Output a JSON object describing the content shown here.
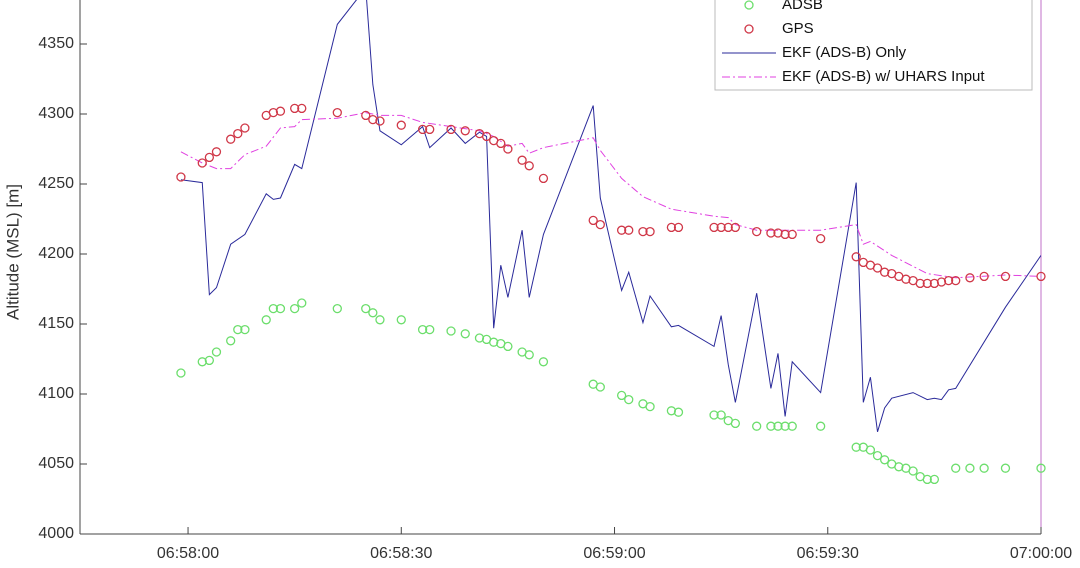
{
  "chart_data": {
    "type": "scatter",
    "y_label": "Altitude (MSL) [m]",
    "xlim": [
      25064.8,
      25200
    ],
    "xticks": [
      {
        "value": 25080,
        "label": "06:58:00"
      },
      {
        "value": 25110,
        "label": "06:58:30"
      },
      {
        "value": 25140,
        "label": "06:59:00"
      },
      {
        "value": 25170,
        "label": "06:59:30"
      },
      {
        "value": 25200,
        "label": "07:00:00"
      }
    ],
    "ylim": [
      4000,
      4380
    ],
    "yticks": [
      4000,
      4050,
      4100,
      4150,
      4200,
      4250,
      4300,
      4350
    ],
    "grid": false,
    "legend": "top-right",
    "series": [
      {
        "name": "ADSB",
        "color": "#6cde6c",
        "mode": "markers",
        "x": [
          25079,
          25082,
          25083,
          25084,
          25086,
          25087,
          25088,
          25091,
          25092,
          25093,
          25095,
          25096,
          25101,
          25105,
          25106,
          25107,
          25110,
          25113,
          25114,
          25117,
          25119,
          25121,
          25122,
          25123,
          25124,
          25125,
          25127,
          25128,
          25130,
          25137,
          25138,
          25141,
          25142,
          25144,
          25145,
          25148,
          25149,
          25154,
          25155,
          25156,
          25157,
          25160,
          25162,
          25163,
          25164,
          25165,
          25169,
          25174,
          25175,
          25176,
          25177,
          25178,
          25179,
          25180,
          25181,
          25182,
          25183,
          25184,
          25185,
          25188,
          25190,
          25192,
          25195,
          25200
        ],
        "values": [
          4115,
          4123,
          4124,
          4130,
          4138,
          4146,
          4146,
          4153,
          4161,
          4161,
          4161,
          4165,
          4161,
          4161,
          4158,
          4153,
          4153,
          4146,
          4146,
          4145,
          4143,
          4140,
          4139,
          4137,
          4136,
          4134,
          4130,
          4128,
          4123,
          4107,
          4105,
          4099,
          4096,
          4093,
          4091,
          4088,
          4087,
          4085,
          4085,
          4081,
          4079,
          4077,
          4077,
          4077,
          4077,
          4077,
          4077,
          4062,
          4062,
          4060,
          4056,
          4053,
          4050,
          4048,
          4047,
          4045,
          4041,
          4039,
          4039,
          4047,
          4047,
          4047,
          4047,
          4047
        ]
      },
      {
        "name": "GPS",
        "color": "#d03848",
        "mode": "markers",
        "x": [
          25079,
          25082,
          25083,
          25084,
          25086,
          25087,
          25088,
          25091,
          25092,
          25093,
          25095,
          25096,
          25101,
          25105,
          25106,
          25107,
          25110,
          25113,
          25114,
          25117,
          25119,
          25121,
          25122,
          25123,
          25124,
          25125,
          25127,
          25128,
          25130,
          25137,
          25138,
          25141,
          25142,
          25144,
          25145,
          25148,
          25149,
          25154,
          25155,
          25156,
          25157,
          25160,
          25162,
          25163,
          25164,
          25165,
          25169,
          25174,
          25175,
          25176,
          25177,
          25178,
          25179,
          25180,
          25181,
          25182,
          25183,
          25184,
          25185,
          25186,
          25187,
          25188,
          25190,
          25192,
          25195,
          25200
        ],
        "values": [
          4255,
          4265,
          4269,
          4273,
          4282,
          4286,
          4290,
          4299,
          4301,
          4302,
          4304,
          4304,
          4301,
          4299,
          4296,
          4295,
          4292,
          4289,
          4289,
          4289,
          4288,
          4286,
          4284,
          4281,
          4279,
          4275,
          4267,
          4263,
          4254,
          4224,
          4221,
          4217,
          4217,
          4216,
          4216,
          4219,
          4219,
          4219,
          4219,
          4219,
          4219,
          4216,
          4215,
          4215,
          4214,
          4214,
          4211,
          4198,
          4194,
          4192,
          4190,
          4187,
          4186,
          4184,
          4182,
          4181,
          4179,
          4179,
          4179,
          4180,
          4181,
          4181,
          4183,
          4184,
          4184,
          4184
        ]
      },
      {
        "name": "EKF (ADS-B) Only",
        "color": "#2a2a9a",
        "mode": "lines",
        "dash": "solid",
        "x": [
          25079,
          25082,
          25083,
          25084,
          25086,
          25088,
          25091,
          25092,
          25093,
          25095,
          25096,
          25101,
          25105,
          25106,
          25107,
          25110,
          25113,
          25114,
          25117,
          25119,
          25121,
          25122,
          25123,
          25124,
          25125,
          25127,
          25128,
          25130,
          25137,
          25138,
          25141,
          25142,
          25144,
          25145,
          25148,
          25149,
          25154,
          25155,
          25156,
          25157,
          25160,
          25162,
          25163,
          25164,
          25165,
          25169,
          25174,
          25175,
          25176,
          25177,
          25178,
          25179,
          25182,
          25184,
          25185,
          25186,
          25187,
          25188,
          25195,
          25200
        ],
        "values": [
          4253,
          4251,
          4171,
          4176,
          4207,
          4214,
          4243,
          4239,
          4240,
          4264,
          4261,
          4364,
          4390,
          4321,
          4288,
          4278,
          4291,
          4276,
          4290,
          4279,
          4287,
          4284,
          4147,
          4192,
          4169,
          4217,
          4169,
          4214,
          4306,
          4240,
          4174,
          4187,
          4151,
          4170,
          4148,
          4149,
          4134,
          4156,
          4121,
          4094,
          4172,
          4104,
          4129,
          4084,
          4123,
          4101,
          4251,
          4094,
          4112,
          4073,
          4090,
          4097,
          4101,
          4096,
          4097,
          4096,
          4103,
          4104,
          4162,
          4199
        ]
      },
      {
        "name": "EKF (ADS-B) w/ UHARS Input",
        "color": "#e040e0",
        "mode": "lines",
        "dash": "dashdot",
        "x": [
          25079,
          25082,
          25084,
          25086,
          25088,
          25091,
          25093,
          25095,
          25096,
          25101,
          25105,
          25107,
          25110,
          25113,
          25117,
          25121,
          25123,
          25125,
          25127,
          25128,
          25130,
          25137,
          25138,
          25141,
          25144,
          25148,
          25154,
          25156,
          25157,
          25160,
          25164,
          25169,
          25174,
          25175,
          25176,
          25179,
          25184,
          25188,
          25195,
          25200
        ],
        "values": [
          4273,
          4265,
          4261,
          4261,
          4271,
          4277,
          4290,
          4291,
          4296,
          4297,
          4301,
          4299,
          4299,
          4294,
          4291,
          4288,
          4284,
          4277,
          4279,
          4272,
          4276,
          4283,
          4274,
          4254,
          4241,
          4232,
          4227,
          4226,
          4221,
          4217,
          4217,
          4217,
          4221,
          4207,
          4209,
          4199,
          4186,
          4183,
          4185,
          4184
        ]
      }
    ]
  }
}
